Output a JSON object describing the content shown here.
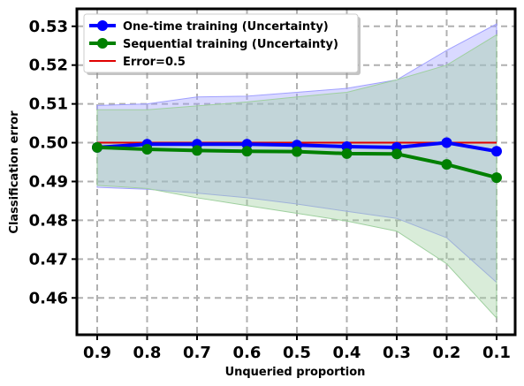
{
  "chart_data": {
    "type": "line",
    "xlabel": "Unqueried proportion",
    "ylabel": "Classification error",
    "x": [
      0.9,
      0.8,
      0.7,
      0.6,
      0.5,
      0.4,
      0.3,
      0.2,
      0.1
    ],
    "x_tick_labels": [
      "0.9",
      "0.8",
      "0.7",
      "0.6",
      "0.5",
      "0.4",
      "0.3",
      "0.2",
      "0.1"
    ],
    "x_reversed": true,
    "ylim": [
      0.4505,
      0.5345
    ],
    "y_ticks": [
      0.46,
      0.47,
      0.48,
      0.49,
      0.5,
      0.51,
      0.52,
      0.53
    ],
    "y_tick_labels": [
      "0.46",
      "0.47",
      "0.48",
      "0.49",
      "0.50",
      "0.51",
      "0.52",
      "0.53"
    ],
    "grid": true,
    "legend_position": "top-left",
    "series": [
      {
        "name": "One-time training (Uncertainty)",
        "color": "#0000ff",
        "marker": "circle",
        "values": [
          0.4988,
          0.4996,
          0.4996,
          0.4996,
          0.4994,
          0.499,
          0.4988,
          0.5,
          0.4978
        ],
        "band_upper": [
          0.5096,
          0.51,
          0.5118,
          0.512,
          0.513,
          0.514,
          0.5162,
          0.5238,
          0.5306
        ],
        "band_lower": [
          0.4885,
          0.488,
          0.487,
          0.4858,
          0.4842,
          0.4823,
          0.4805,
          0.4755,
          0.464
        ],
        "band_color": "#a0a0ff"
      },
      {
        "name": "Sequential training (Uncertainty)",
        "color": "#008000",
        "marker": "circle",
        "values": [
          0.4988,
          0.4983,
          0.498,
          0.4978,
          0.4977,
          0.4972,
          0.4971,
          0.4944,
          0.491
        ],
        "band_upper": [
          0.5085,
          0.5085,
          0.5095,
          0.5105,
          0.5118,
          0.513,
          0.5162,
          0.52,
          0.5278
        ],
        "band_lower": [
          0.489,
          0.4882,
          0.4858,
          0.4838,
          0.4818,
          0.4798,
          0.4772,
          0.4688,
          0.4548
        ],
        "band_color": "#9fd09f"
      },
      {
        "name": "Error=0.5",
        "color": "#e00000",
        "marker": "none",
        "values": [
          0.5,
          0.5,
          0.5,
          0.5,
          0.5,
          0.5,
          0.5,
          0.5,
          0.5
        ]
      }
    ]
  }
}
